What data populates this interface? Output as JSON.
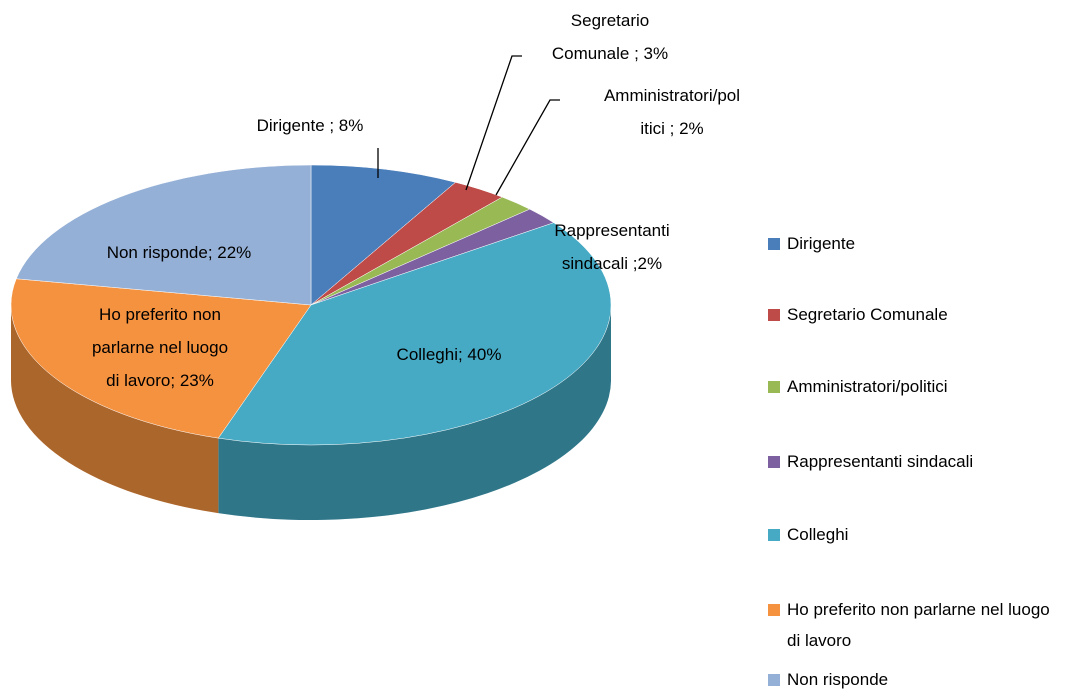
{
  "chart_data": {
    "type": "pie",
    "categories": [
      "Dirigente",
      "Segretario Comunale",
      "Amministratori/politici",
      "Rappresentanti sindacali",
      "Colleghi",
      "Ho preferito non parlarne nel luogo di lavoro",
      "Non risponde"
    ],
    "values": [
      8,
      3,
      2,
      2,
      40,
      23,
      22
    ],
    "value_labels": [
      "Dirigente ; 8%",
      "Segretario\nComunale ; 3%",
      "Amministratori/pol\nitici ;  2%",
      "Rappresentanti\nsindacali ;2%",
      "Colleghi; 40%",
      "Ho preferito non\nparlarne nel luogo\ndi lavoro;  23%",
      "Non risponde; 22%"
    ],
    "colors": [
      "#4a7ebb",
      "#be4b48",
      "#98b954",
      "#7d60a0",
      "#46aac5",
      "#f59240",
      "#95b0d6"
    ],
    "legend": "right"
  }
}
